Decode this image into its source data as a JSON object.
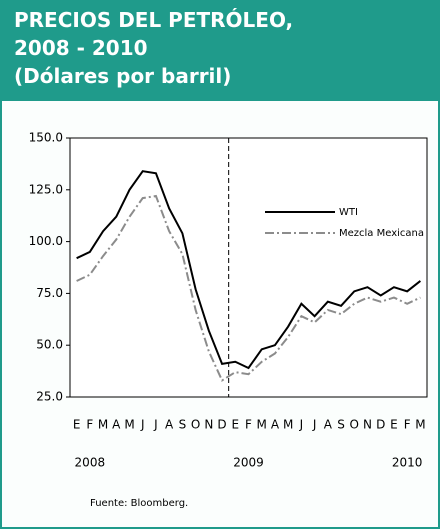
{
  "header": {
    "lines": [
      "PRECIOS DEL PETRÓLEO,",
      "2008 - 2010",
      "(Dólares por barril)"
    ]
  },
  "chart_data": {
    "type": "line",
    "categories": [
      "E",
      "F",
      "M",
      "A",
      "M",
      "J",
      "J",
      "A",
      "S",
      "O",
      "N",
      "D",
      "E",
      "F",
      "M",
      "A",
      "M",
      "J",
      "J",
      "A",
      "S",
      "O",
      "N",
      "D",
      "E",
      "F",
      "M"
    ],
    "years": [
      "2008",
      "2009",
      "2010"
    ],
    "series": [
      {
        "name": "WTI",
        "color": "#000000",
        "values": [
          92,
          95,
          105,
          112,
          125,
          134,
          133,
          116,
          104,
          77,
          57,
          41,
          42,
          39,
          48,
          50,
          59,
          70,
          64,
          71,
          69,
          76,
          78,
          74,
          78,
          76,
          81
        ]
      },
      {
        "name": "Mezcla Mexicana",
        "color": "#8c8c8c",
        "values": [
          81,
          84,
          93,
          101,
          112,
          121,
          122,
          105,
          94,
          67,
          47,
          33,
          37,
          36,
          42,
          46,
          54,
          64,
          61,
          67,
          65,
          70,
          73,
          71,
          73,
          70,
          73
        ]
      }
    ],
    "ylim": [
      25,
      150
    ],
    "yticks": [
      {
        "value": 25,
        "label": "25.0"
      },
      {
        "value": 50,
        "label": "50.0"
      },
      {
        "value": 75,
        "label": "75.0"
      },
      {
        "value": 100,
        "label": "100.0"
      },
      {
        "value": 125,
        "label": "125.0"
      },
      {
        "value": 150,
        "label": "150.0"
      }
    ],
    "source": "Fuente: Bloomberg."
  }
}
